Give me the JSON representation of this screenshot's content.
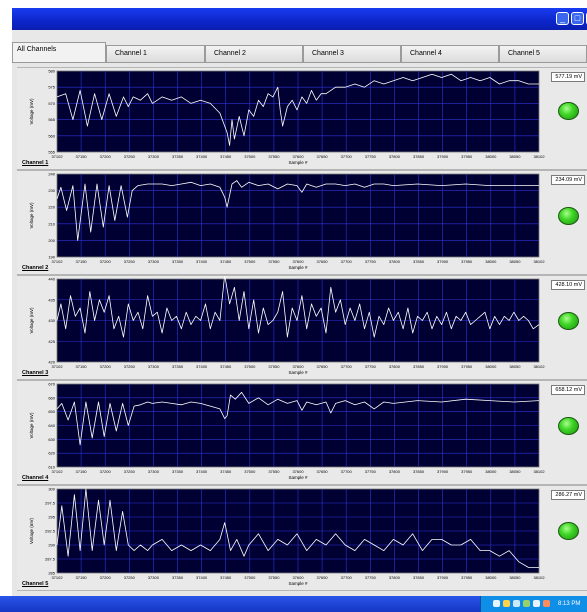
{
  "window": {
    "controls": [
      "minimize-button",
      "maximize-button",
      "close-button"
    ]
  },
  "tabs": [
    {
      "label": "All Channels",
      "active": true
    },
    {
      "label": "Channel 1",
      "active": false
    },
    {
      "label": "Channel 2",
      "active": false
    },
    {
      "label": "Channel 3",
      "active": false
    },
    {
      "label": "Channel 4",
      "active": false
    },
    {
      "label": "Channel 5",
      "active": false
    }
  ],
  "colors": {
    "plot_bg": "#000033",
    "grid": "#2f33d6",
    "trace": "#ffffff",
    "indicator": "#3fd526"
  },
  "chart_data": [
    {
      "type": "line",
      "name": "Channel 1",
      "readout": "577.19 mV",
      "xlabel": "Sample #",
      "ylabel": "Voltage (mV)",
      "xlim": [
        37102,
        38102
      ],
      "ylim": [
        555,
        580
      ],
      "xticks": [
        "37102",
        "37150",
        "37200",
        "37250",
        "37300",
        "37350",
        "37400",
        "37450",
        "37500",
        "37550",
        "37600",
        "37650",
        "37700",
        "37750",
        "37800",
        "37850",
        "37900",
        "37950",
        "38000",
        "38050",
        "38102"
      ],
      "yticks": [
        "580",
        "575",
        "570",
        "565",
        "560",
        "555"
      ],
      "series": [
        {
          "x": [
            37102,
            37120,
            37135,
            37150,
            37165,
            37180,
            37195,
            37210,
            37225,
            37240,
            37250,
            37260,
            37275,
            37290,
            37300,
            37320,
            37340,
            37360,
            37380,
            37400,
            37420,
            37440,
            37455,
            37460,
            37465,
            37470,
            37480,
            37490,
            37500,
            37510,
            37520,
            37530,
            37540,
            37550,
            37560,
            37565,
            37570,
            37580,
            37590,
            37600,
            37610,
            37620,
            37630,
            37640,
            37650,
            37660,
            37670,
            37680,
            37700,
            37720,
            37740,
            37760,
            37780,
            37800,
            37820,
            37840,
            37860,
            37880,
            37900,
            37920,
            37940,
            37960,
            37980,
            38000,
            38020,
            38040,
            38060,
            38080,
            38102
          ],
          "y": [
            572,
            573,
            565,
            574,
            563,
            573,
            565,
            573,
            566,
            572,
            569,
            572,
            571,
            573,
            570,
            572,
            571,
            572,
            570,
            571,
            570,
            567,
            561,
            557,
            565,
            559,
            566,
            560,
            568,
            566,
            571,
            569,
            573,
            572,
            575,
            568,
            563,
            569,
            571,
            568,
            572,
            570,
            574,
            571,
            573,
            573,
            574,
            575,
            575,
            576,
            575,
            577,
            576,
            577,
            578,
            577,
            578,
            579,
            578,
            579,
            577,
            578,
            577,
            578,
            576,
            577,
            577,
            576,
            576
          ]
        }
      ]
    },
    {
      "type": "line",
      "name": "Channel 2",
      "readout": "234.09 mV",
      "xlabel": "Sample #",
      "ylabel": "Voltage (mV)",
      "xlim": [
        37102,
        38102
      ],
      "ylim": [
        190,
        240
      ],
      "xticks": [
        "37102",
        "37150",
        "37200",
        "37250",
        "37300",
        "37350",
        "37400",
        "37450",
        "37500",
        "37550",
        "37600",
        "37650",
        "37700",
        "37750",
        "37800",
        "37850",
        "37900",
        "37950",
        "38000",
        "38050",
        "38102"
      ],
      "yticks": [
        "240",
        "230",
        "220",
        "210",
        "200",
        "190"
      ],
      "series": [
        {
          "x": [
            37102,
            37110,
            37122,
            37135,
            37145,
            37160,
            37172,
            37185,
            37198,
            37210,
            37222,
            37235,
            37248,
            37258,
            37270,
            37290,
            37300,
            37320,
            37340,
            37360,
            37380,
            37400,
            37420,
            37440,
            37450,
            37455,
            37465,
            37475,
            37485,
            37500,
            37520,
            37540,
            37560,
            37580,
            37600,
            37610,
            37620,
            37640,
            37660,
            37680,
            37700,
            37720,
            37740,
            37760,
            37780,
            37800,
            37850,
            37900,
            37950,
            38000,
            38050,
            38102
          ],
          "y": [
            225,
            232,
            218,
            233,
            200,
            234,
            205,
            234,
            208,
            233,
            212,
            233,
            214,
            230,
            233,
            234,
            234,
            234,
            233,
            234,
            235,
            233,
            234,
            232,
            226,
            220,
            234,
            236,
            232,
            235,
            233,
            234,
            231,
            234,
            233,
            229,
            234,
            232,
            234,
            234,
            233,
            234,
            232,
            234,
            234,
            233,
            234,
            233,
            234,
            233,
            233,
            233
          ]
        }
      ]
    },
    {
      "type": "line",
      "name": "Channel 3",
      "readout": "428.10 mV",
      "xlabel": "Sample #",
      "ylabel": "Voltage (mV)",
      "xlim": [
        37102,
        38102
      ],
      "ylim": [
        420,
        440
      ],
      "xticks": [
        "37102",
        "37150",
        "37200",
        "37250",
        "37300",
        "37350",
        "37400",
        "37450",
        "37500",
        "37550",
        "37600",
        "37650",
        "37700",
        "37750",
        "37800",
        "37850",
        "37900",
        "37950",
        "38000",
        "38050",
        "38102"
      ],
      "yticks": [
        "440",
        "435",
        "430",
        "425",
        "420"
      ],
      "series": [
        {
          "x": [
            37102,
            37110,
            37120,
            37130,
            37140,
            37150,
            37160,
            37170,
            37180,
            37190,
            37200,
            37210,
            37220,
            37230,
            37240,
            37250,
            37260,
            37270,
            37280,
            37290,
            37300,
            37310,
            37320,
            37330,
            37340,
            37350,
            37360,
            37370,
            37380,
            37390,
            37400,
            37410,
            37420,
            37430,
            37440,
            37450,
            37460,
            37470,
            37480,
            37490,
            37500,
            37510,
            37520,
            37530,
            37540,
            37550,
            37560,
            37570,
            37580,
            37590,
            37600,
            37610,
            37620,
            37630,
            37640,
            37650,
            37660,
            37670,
            37680,
            37690,
            37700,
            37710,
            37720,
            37730,
            37740,
            37750,
            37760,
            37770,
            37780,
            37790,
            37800,
            37810,
            37820,
            37830,
            37840,
            37850,
            37860,
            37870,
            37880,
            37890,
            37900,
            37910,
            37920,
            37930,
            37940,
            37950,
            37960,
            37970,
            37980,
            37990,
            38000,
            38010,
            38020,
            38030,
            38040,
            38050,
            38060,
            38070,
            38080,
            38090,
            38102
          ],
          "y": [
            430,
            434,
            428,
            436,
            431,
            433,
            427,
            437,
            430,
            435,
            432,
            436,
            428,
            431,
            426,
            434,
            430,
            432,
            428,
            436,
            431,
            432,
            427,
            433,
            430,
            431,
            428,
            432,
            429,
            431,
            430,
            434,
            428,
            432,
            430,
            441,
            434,
            438,
            430,
            437,
            428,
            435,
            427,
            433,
            429,
            430,
            432,
            437,
            426,
            433,
            430,
            436,
            428,
            434,
            431,
            433,
            427,
            438,
            432,
            435,
            429,
            433,
            430,
            434,
            428,
            432,
            426,
            431,
            429,
            433,
            430,
            432,
            428,
            433,
            427,
            431,
            430,
            432,
            428,
            431,
            429,
            432,
            428,
            431,
            430,
            432,
            429,
            430,
            431,
            432,
            428,
            431,
            429,
            431,
            430,
            432,
            430,
            431,
            430,
            428,
            429
          ]
        }
      ]
    },
    {
      "type": "line",
      "name": "Channel 4",
      "readout": "658.12 mV",
      "xlabel": "Sample #",
      "ylabel": "Voltage (mV)",
      "xlim": [
        37102,
        38102
      ],
      "ylim": [
        610,
        670
      ],
      "xticks": [
        "37102",
        "37150",
        "37200",
        "37250",
        "37300",
        "37350",
        "37400",
        "37450",
        "37500",
        "37550",
        "37600",
        "37650",
        "37700",
        "37750",
        "37800",
        "37850",
        "37900",
        "37950",
        "38000",
        "38050",
        "38102"
      ],
      "yticks": [
        "670",
        "660",
        "650",
        "640",
        "630",
        "620",
        "610"
      ],
      "series": [
        {
          "x": [
            37102,
            37112,
            37125,
            37138,
            37150,
            37162,
            37175,
            37188,
            37200,
            37212,
            37225,
            37238,
            37250,
            37262,
            37275,
            37290,
            37300,
            37320,
            37340,
            37360,
            37380,
            37400,
            37420,
            37440,
            37450,
            37455,
            37462,
            37472,
            37485,
            37500,
            37520,
            37540,
            37560,
            37580,
            37600,
            37610,
            37620,
            37640,
            37660,
            37670,
            37680,
            37700,
            37720,
            37740,
            37760,
            37780,
            37800,
            37850,
            37900,
            37950,
            38000,
            38050,
            38102
          ],
          "y": [
            652,
            656,
            644,
            657,
            626,
            657,
            631,
            657,
            632,
            656,
            636,
            656,
            640,
            654,
            655,
            657,
            656,
            657,
            656,
            655,
            657,
            656,
            654,
            652,
            645,
            647,
            662,
            659,
            664,
            656,
            660,
            655,
            659,
            656,
            658,
            651,
            657,
            655,
            657,
            649,
            656,
            658,
            655,
            657,
            652,
            657,
            656,
            658,
            657,
            659,
            658,
            657,
            658
          ]
        }
      ]
    },
    {
      "type": "line",
      "name": "Channel 5",
      "readout": "286.27 mV",
      "xlabel": "Sample #",
      "ylabel": "Voltage (mV)",
      "xlim": [
        37102,
        38102
      ],
      "ylim": [
        285,
        300
      ],
      "xticks": [
        "37102",
        "37150",
        "37200",
        "37250",
        "37300",
        "37350",
        "37400",
        "37450",
        "37500",
        "37550",
        "37600",
        "37650",
        "37700",
        "37750",
        "37800",
        "37850",
        "37900",
        "37950",
        "38000",
        "38050",
        "38102"
      ],
      "yticks": [
        "300",
        "297.5",
        "295",
        "292.5",
        "290",
        "287.5",
        "285"
      ],
      "series": [
        {
          "x": [
            37102,
            37112,
            37125,
            37138,
            37150,
            37162,
            37175,
            37188,
            37200,
            37212,
            37225,
            37238,
            37250,
            37262,
            37275,
            37290,
            37300,
            37320,
            37340,
            37360,
            37380,
            37400,
            37420,
            37440,
            37450,
            37455,
            37462,
            37475,
            37490,
            37500,
            37520,
            37540,
            37560,
            37580,
            37600,
            37620,
            37640,
            37660,
            37680,
            37700,
            37720,
            37740,
            37760,
            37780,
            37800,
            37820,
            37840,
            37860,
            37880,
            37900,
            37920,
            37940,
            37960,
            37980,
            38000,
            38020,
            38040,
            38060,
            38080,
            38102
          ],
          "y": [
            290,
            297,
            288,
            299,
            289,
            300,
            289,
            298,
            290,
            298,
            289,
            296,
            290,
            289,
            290,
            289,
            290,
            291,
            289,
            290,
            289,
            290,
            289,
            291,
            294,
            292,
            289,
            291,
            288,
            290,
            292,
            289,
            291,
            290,
            292,
            289,
            291,
            290,
            292,
            290,
            289,
            291,
            290,
            289,
            291,
            290,
            292,
            289,
            291,
            291,
            290,
            290,
            291,
            289,
            289,
            288,
            289,
            287,
            286,
            286
          ]
        }
      ]
    }
  ],
  "taskbar": {
    "clock": "8:13 PM"
  }
}
